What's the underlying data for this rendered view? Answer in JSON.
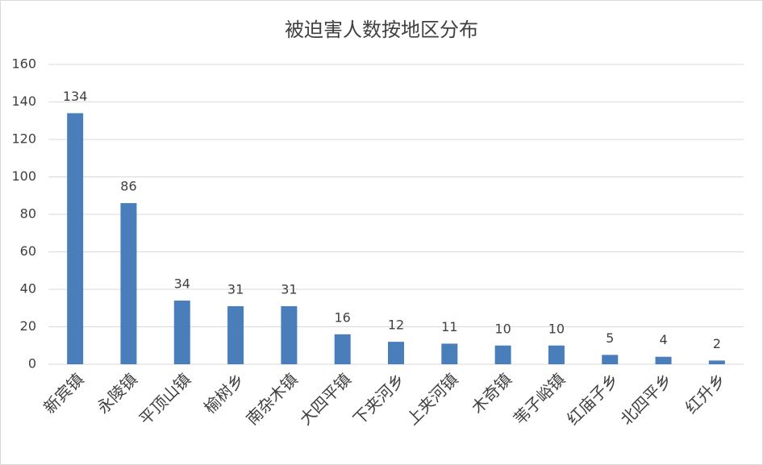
{
  "chart_data": {
    "type": "bar",
    "title": "被迫害人数按地区分布",
    "categories": [
      "新宾镇",
      "永陵镇",
      "平顶山镇",
      "榆树乡",
      "南杂木镇",
      "大四平镇",
      "下夹河乡",
      "上夹河镇",
      "木奇镇",
      "苇子峪镇",
      "红庙子乡",
      "北四平乡",
      "红升乡"
    ],
    "values": [
      134,
      86,
      34,
      31,
      31,
      16,
      12,
      11,
      10,
      10,
      5,
      4,
      2
    ],
    "color": "#4a7ebb",
    "ylim": [
      0,
      160
    ],
    "yticks": [
      0,
      20,
      40,
      60,
      80,
      100,
      120,
      140,
      160
    ],
    "grid": true
  }
}
